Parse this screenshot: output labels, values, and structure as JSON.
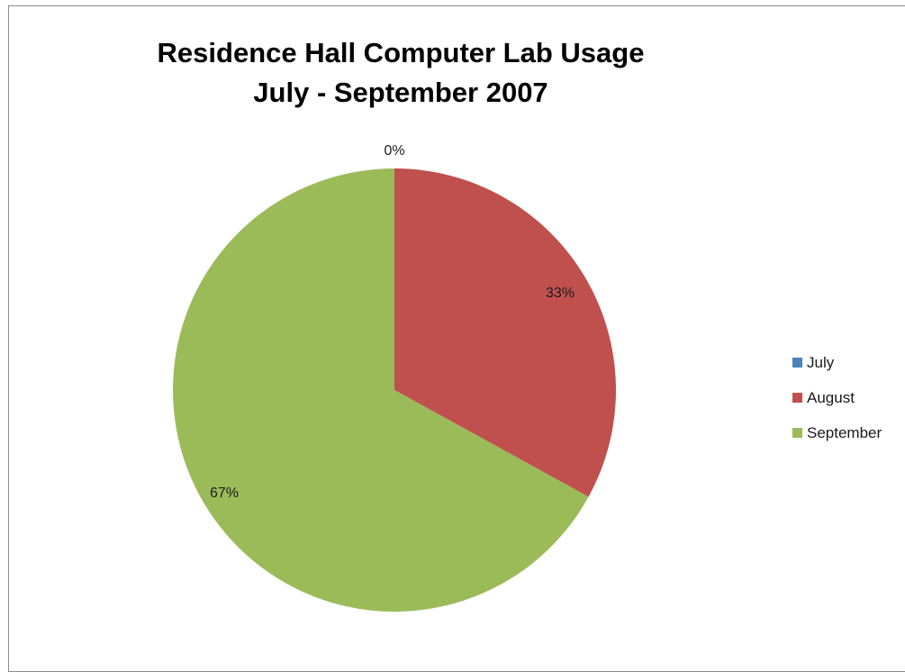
{
  "chart_data": {
    "type": "pie",
    "title_lines": [
      "Residence Hall Computer Lab Usage",
      "July - September 2007"
    ],
    "categories": [
      "July",
      "August",
      "September"
    ],
    "values": [
      0,
      33,
      67
    ],
    "value_labels": [
      "0%",
      "33%",
      "67%"
    ],
    "colors": [
      "#4f81bd",
      "#c0504d",
      "#9bbb59"
    ],
    "legend": {
      "placement": "right",
      "items": [
        {
          "label": "July",
          "color": "#4f81bd"
        },
        {
          "label": "August",
          "color": "#c0504d"
        },
        {
          "label": "September",
          "color": "#9bbb59"
        }
      ]
    }
  }
}
